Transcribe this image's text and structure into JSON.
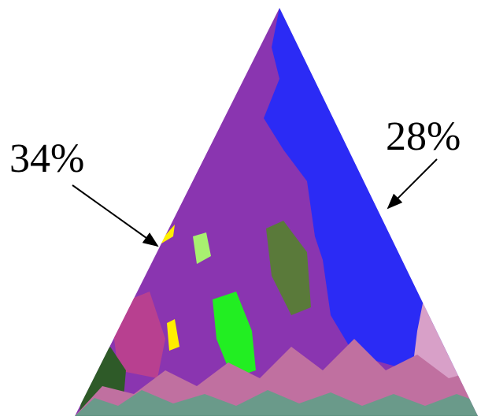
{
  "annotations": {
    "left": "34%",
    "right": "28%"
  }
}
